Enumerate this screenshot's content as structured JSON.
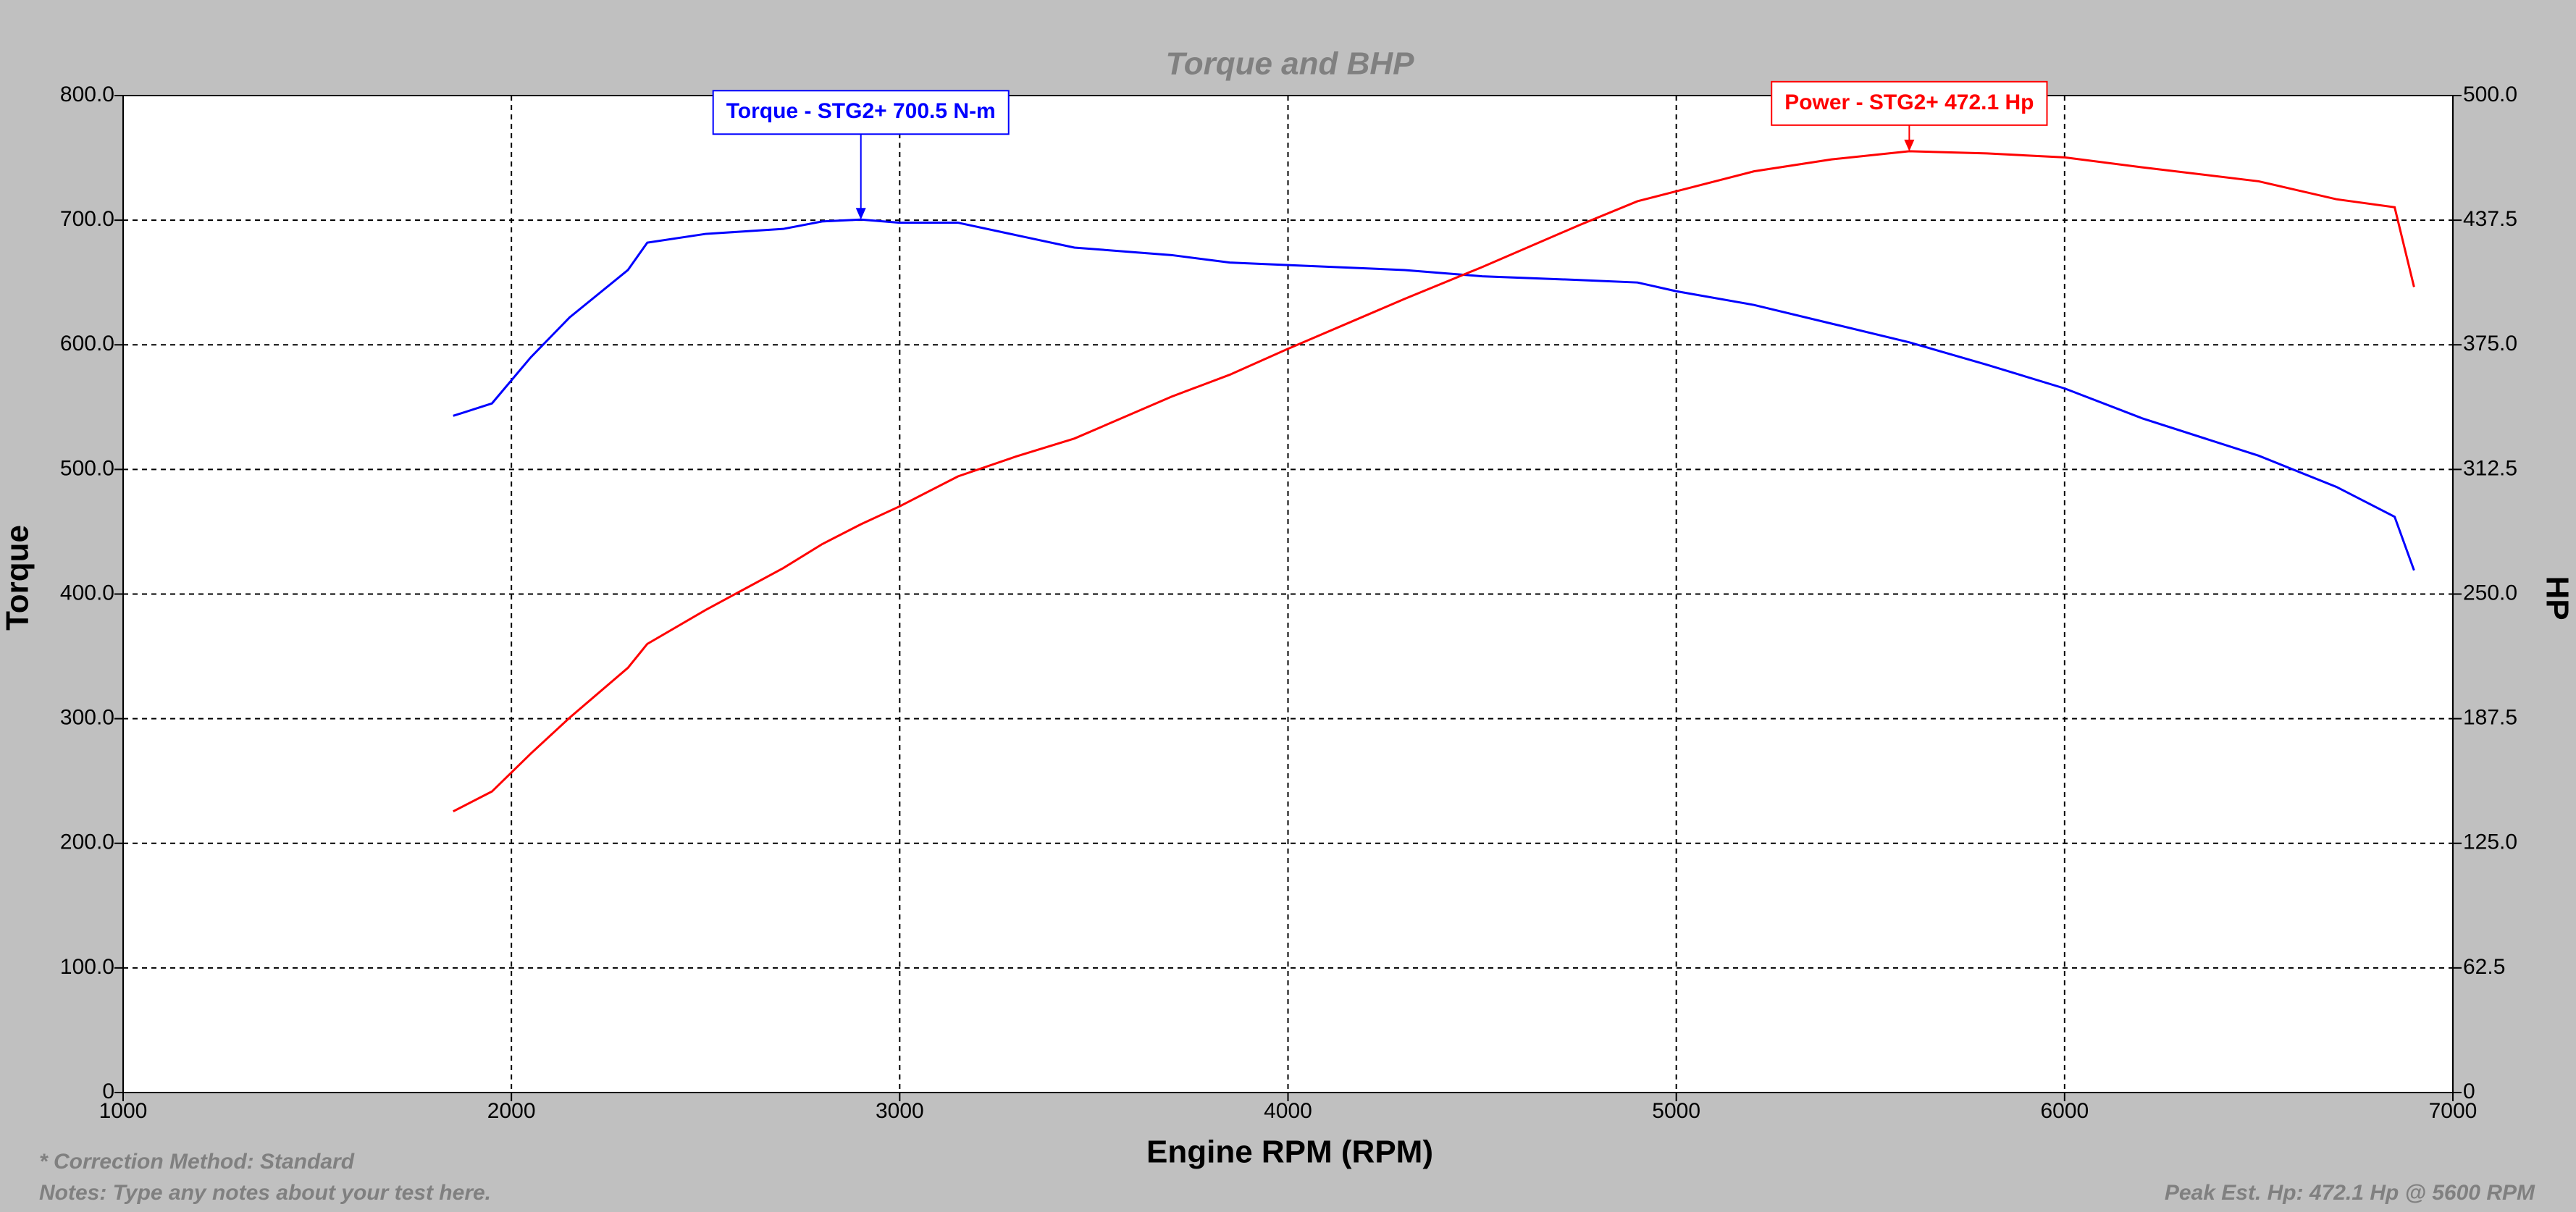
{
  "chart_data": {
    "type": "line",
    "title": "Torque and BHP",
    "x_label": "Engine RPM (RPM)",
    "y_label": "Torque",
    "y2_label": "HP",
    "x": [
      1850,
      1950,
      2050,
      2150,
      2300,
      2350,
      2500,
      2700,
      2800,
      2900,
      3000,
      3150,
      3300,
      3450,
      3700,
      3850,
      4000,
      4300,
      4500,
      4750,
      4900,
      5000,
      5200,
      5400,
      5600,
      5800,
      6000,
      6200,
      6500,
      6700,
      6850,
      6900
    ],
    "series": [
      {
        "name": "Torque - STG2+",
        "color": "#0000ff",
        "values": [
          543,
          553,
          590,
          622,
          660,
          682,
          689,
          693,
          699,
          700.5,
          698,
          698,
          688,
          678,
          672,
          666,
          664,
          660,
          655,
          652,
          650,
          643,
          632,
          617,
          602,
          584,
          565,
          541,
          511,
          486,
          462,
          419
        ]
      },
      {
        "name": "Power - STG2+",
        "color": "#ff0000",
        "axis": "y2",
        "values": [
          141,
          151,
          170,
          188,
          213,
          225,
          242,
          263,
          275,
          285,
          294,
          309,
          319,
          328,
          349,
          360,
          373,
          398,
          414,
          435,
          447,
          452,
          462,
          468,
          472.1,
          471,
          469,
          464,
          457,
          448,
          444,
          404
        ]
      }
    ],
    "annotations": [
      {
        "text": "Torque - STG2+ 700.5 N-m",
        "x": 2900,
        "y": 700.5,
        "color": "#0000ff"
      },
      {
        "text": "Power - STG2+ 472.1 Hp",
        "x": 5600,
        "y": 472.1,
        "axis": "y2",
        "color": "#ff0000"
      }
    ],
    "xlim": [
      1000,
      7000
    ],
    "xticks": [
      1000,
      2000,
      3000,
      4000,
      5000,
      6000,
      7000
    ],
    "ylim": [
      0,
      800
    ],
    "yticks": [
      0,
      {
        "value": 100,
        "label": "100.0"
      },
      {
        "value": 200,
        "label": "200.0"
      },
      {
        "value": 300,
        "label": "300.0"
      },
      {
        "value": 400,
        "label": "400.0"
      },
      {
        "value": 500,
        "label": "500.0"
      },
      {
        "value": 600,
        "label": "600.0"
      },
      {
        "value": 700,
        "label": "700.0"
      },
      {
        "value": 800,
        "label": "800.0"
      }
    ],
    "y2lim": [
      0,
      500
    ],
    "y2ticks": [
      0,
      62.5,
      {
        "value": 125,
        "label": "125.0"
      },
      187.5,
      {
        "value": 250,
        "label": "250.0"
      },
      312.5,
      {
        "value": 375,
        "label": "375.0"
      },
      437.5,
      {
        "value": 500,
        "label": "500.0"
      }
    ],
    "grid": true,
    "notes": [
      "* Correction Method: Standard",
      "Notes: Type any notes about your test here."
    ],
    "footer_right": "Peak Est. Hp: 472.1 Hp @ 5600 RPM"
  }
}
